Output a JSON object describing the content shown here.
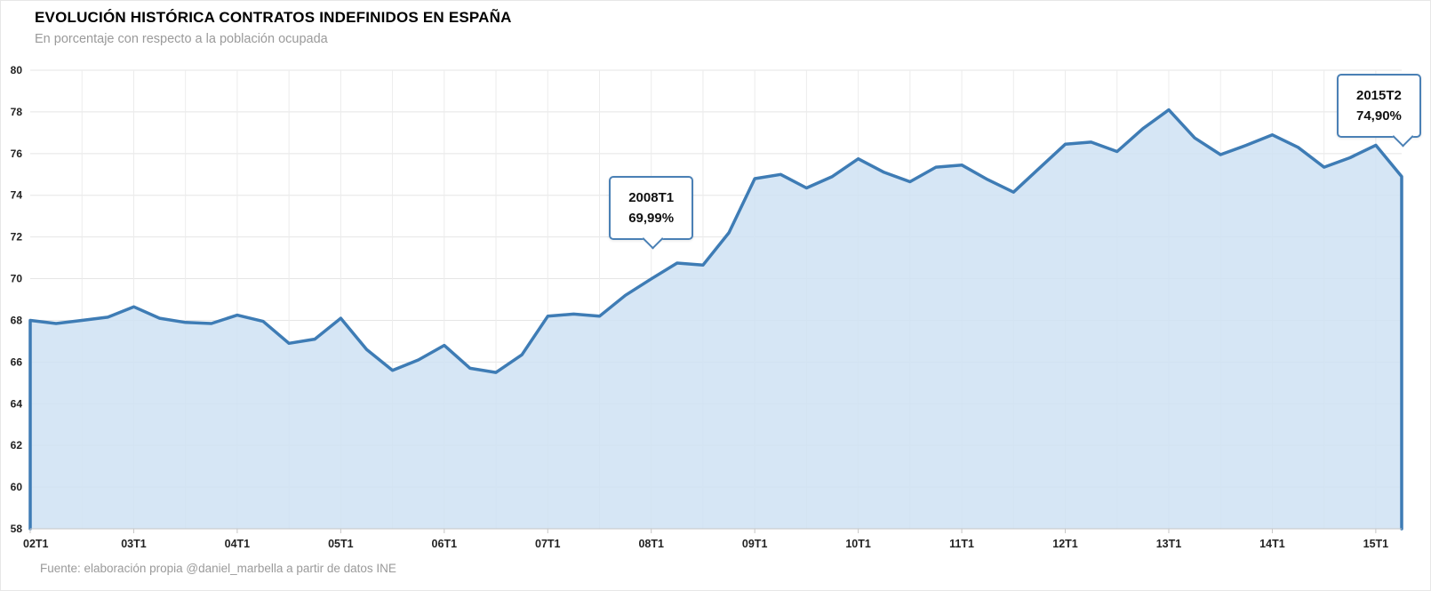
{
  "header": {
    "title": "EVOLUCIÓN HISTÓRICA CONTRATOS INDEFINIDOS EN ESPAÑA",
    "subtitle": "En porcentaje con respecto a la población ocupada"
  },
  "footer": {
    "source": "Fuente: elaboración propia @daniel_marbella a partir de datos INE"
  },
  "annotations": [
    {
      "label": "2008T1",
      "value": "69,99%",
      "index": 24
    },
    {
      "label": "2015T2",
      "value": "74,90%",
      "index": 53
    }
  ],
  "chart_data": {
    "type": "area",
    "title": "EVOLUCIÓN HISTÓRICA CONTRATOS INDEFINIDOS EN ESPAÑA",
    "subtitle": "En porcentaje con respecto a la población ocupada",
    "x": [
      "02T1",
      "02T2",
      "02T3",
      "02T4",
      "03T1",
      "03T2",
      "03T3",
      "03T4",
      "04T1",
      "04T2",
      "04T3",
      "04T4",
      "05T1",
      "05T2",
      "05T3",
      "05T4",
      "06T1",
      "06T2",
      "06T3",
      "06T4",
      "07T1",
      "07T2",
      "07T3",
      "07T4",
      "08T1",
      "08T2",
      "08T3",
      "08T4",
      "09T1",
      "09T2",
      "09T3",
      "09T4",
      "10T1",
      "10T2",
      "10T3",
      "10T4",
      "11T1",
      "11T2",
      "11T3",
      "11T4",
      "12T1",
      "12T2",
      "12T3",
      "12T4",
      "13T1",
      "13T2",
      "13T3",
      "13T4",
      "14T1",
      "14T2",
      "14T3",
      "14T4",
      "15T1",
      "15T2"
    ],
    "values": [
      68.0,
      67.85,
      68.0,
      68.15,
      68.65,
      68.1,
      67.9,
      67.85,
      68.25,
      67.95,
      66.9,
      67.1,
      68.1,
      66.6,
      65.6,
      66.1,
      66.8,
      65.7,
      65.5,
      66.35,
      68.2,
      68.3,
      68.2,
      69.2,
      69.99,
      70.75,
      70.65,
      72.2,
      74.8,
      75.0,
      74.35,
      74.9,
      75.75,
      75.1,
      74.65,
      75.35,
      75.45,
      74.75,
      74.15,
      75.3,
      76.45,
      76.55,
      76.1,
      77.2,
      78.1,
      76.75,
      75.95,
      76.4,
      76.9,
      76.3,
      75.35,
      75.8,
      76.4,
      74.9
    ],
    "x_tick_every": 4,
    "y_ticks": [
      58,
      60,
      62,
      64,
      66,
      68,
      70,
      72,
      74,
      76,
      78,
      80
    ],
    "ylim": [
      58,
      80
    ],
    "grid": true,
    "legend": "none",
    "line_color": "#3e7cb5",
    "fill_color": "#cfe2f3",
    "grid_color": "#e5e5e5",
    "axis_color": "#c6c6c6"
  }
}
